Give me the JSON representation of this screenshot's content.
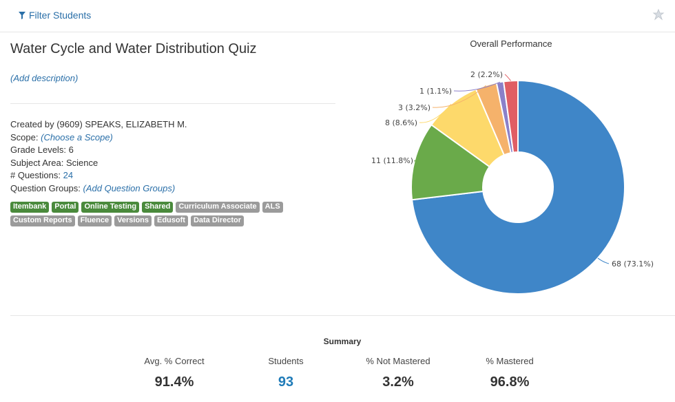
{
  "toolbar": {
    "filter_label": "Filter Students"
  },
  "assessment": {
    "title": "Water Cycle and Water Distribution Quiz",
    "add_description": "(Add description)",
    "created_by_label": "Created by",
    "created_by_value": "(9609) SPEAKS, ELIZABETH M.",
    "scope_label": "Scope:",
    "scope_value": "(Choose a Scope)",
    "grade_levels_label": "Grade Levels:",
    "grade_levels_value": "6",
    "subject_area_label": "Subject Area:",
    "subject_area_value": "Science",
    "questions_label": "# Questions:",
    "questions_value": "24",
    "question_groups_label": "Question Groups:",
    "question_groups_value": "(Add Question Groups)"
  },
  "tags": {
    "row1": [
      {
        "label": "Itembank",
        "color": "#4a8a3c"
      },
      {
        "label": "Portal",
        "color": "#4a8a3c"
      },
      {
        "label": "Online Testing",
        "color": "#4a8a3c"
      },
      {
        "label": "Shared",
        "color": "#4a8a3c"
      },
      {
        "label": "Curriculum Associate",
        "color": "#9b9b9b"
      },
      {
        "label": "ALS",
        "color": "#9b9b9b"
      }
    ],
    "row2": [
      {
        "label": "Custom Reports",
        "color": "#9b9b9b"
      },
      {
        "label": "Fluence",
        "color": "#9b9b9b"
      },
      {
        "label": "Versions",
        "color": "#9b9b9b"
      },
      {
        "label": "Edusoft",
        "color": "#9b9b9b"
      },
      {
        "label": "Data Director",
        "color": "#9b9b9b"
      }
    ]
  },
  "chart_data": {
    "type": "pie",
    "title": "Overall Performance",
    "donut": true,
    "slices": [
      {
        "value": 68,
        "label": "68 (73.1%)",
        "color": "#3f86c8"
      },
      {
        "value": 11,
        "label": "11 (11.8%)",
        "color": "#6aaa4a"
      },
      {
        "value": 8,
        "label": "8 (8.6%)",
        "color": "#fdd96b"
      },
      {
        "value": 3,
        "label": "3 (3.2%)",
        "color": "#f5b26b"
      },
      {
        "value": 1,
        "label": "1 (1.1%)",
        "color": "#8b80c9"
      },
      {
        "value": 2,
        "label": "2 (2.2%)",
        "color": "#e05e64"
      }
    ]
  },
  "summary": {
    "title": "Summary",
    "avg_correct_label": "Avg. % Correct",
    "avg_correct_value": "91.4%",
    "students_label": "Students",
    "students_value": "93",
    "not_mastered_label": "% Not Mastered",
    "not_mastered_value": "3.2%",
    "mastered_label": "% Mastered",
    "mastered_value": "96.8%"
  }
}
